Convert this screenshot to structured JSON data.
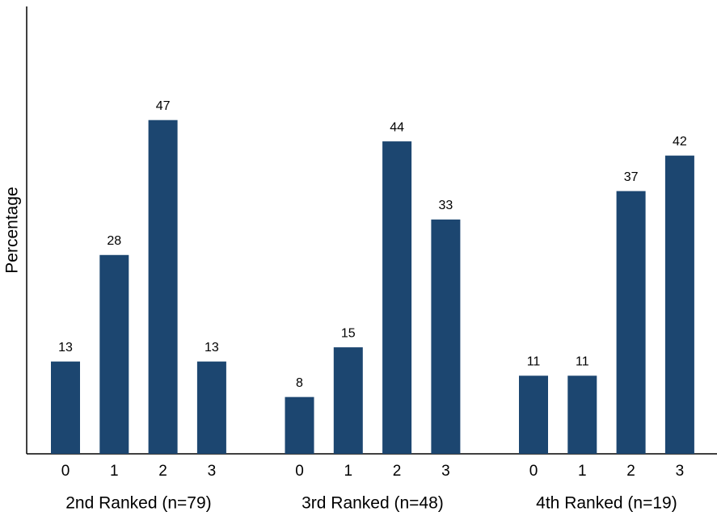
{
  "chart_data": {
    "type": "bar",
    "y_label": "Percentage",
    "color": "#1c4670",
    "ylim": [
      0,
      63
    ],
    "groups": [
      {
        "name": "2nd Ranked (n=79)",
        "categories": [
          "0",
          "1",
          "2",
          "3"
        ],
        "values": [
          13,
          28,
          47,
          13
        ]
      },
      {
        "name": "3rd Ranked (n=48)",
        "categories": [
          "0",
          "1",
          "2",
          "3"
        ],
        "values": [
          8,
          15,
          44,
          33
        ]
      },
      {
        "name": "4th Ranked (n=19)",
        "categories": [
          "0",
          "1",
          "2",
          "3"
        ],
        "values": [
          11,
          11,
          37,
          42
        ]
      }
    ]
  }
}
